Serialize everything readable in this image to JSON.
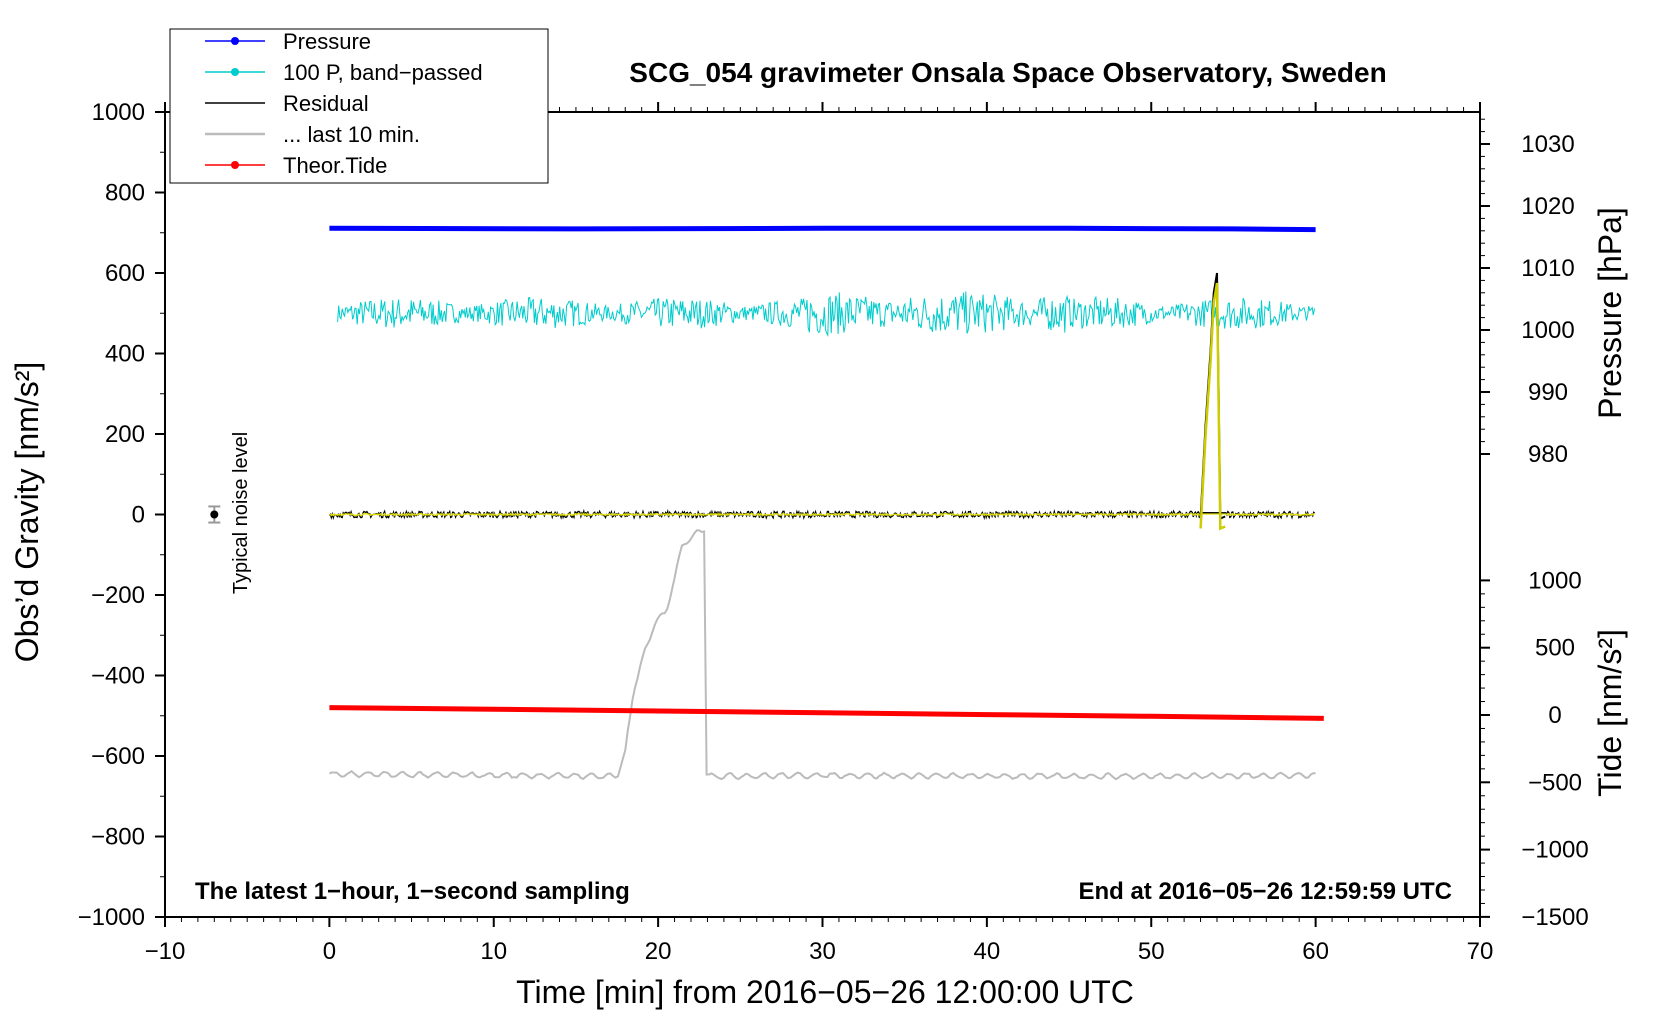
{
  "chart_data": {
    "type": "line",
    "title": "SCG_054 gravimeter Onsala Space Observatory, Sweden",
    "xlabel": "Time [min] from 2016−05−26 12:00:00 UTC",
    "ylabel_main": "Obs’d Gravity [nm/s²]",
    "ylabel_pressure": "Pressure [hPa]",
    "ylabel_tide": "Tide [nm/s²]",
    "xlim": [
      -10,
      70
    ],
    "ylim": [
      -1000,
      1000
    ],
    "pressure_lim": [
      975,
      1035
    ],
    "tide_lim": [
      -1500,
      1000
    ],
    "x_ticks": [
      -10,
      0,
      10,
      20,
      30,
      40,
      50,
      60,
      70
    ],
    "x_tick_labels": [
      "−10",
      "0",
      "10",
      "20",
      "30",
      "40",
      "50",
      "60",
      "70"
    ],
    "y_ticks": [
      1000,
      800,
      600,
      400,
      200,
      0,
      -200,
      -400,
      -600,
      -800,
      -1000
    ],
    "y_tick_labels": [
      "1000",
      "800",
      "600",
      "400",
      "200",
      "0",
      "−200",
      "−400",
      "−600",
      "−800",
      "−1000"
    ],
    "pressure_ticks": [
      1030,
      1020,
      1010,
      1000,
      990,
      980
    ],
    "pressure_tick_labels": [
      "1030",
      "1020",
      "1010",
      "1000",
      "990",
      "980"
    ],
    "tide_ticks": [
      1000,
      500,
      0,
      -500,
      -1000,
      -1500
    ],
    "tide_tick_labels": [
      "1000",
      "500",
      "0",
      "−500",
      "−1000",
      "−1500"
    ],
    "legend": {
      "position": "top-left",
      "entries": [
        {
          "label": "Pressure",
          "color": "#0000ff",
          "marker": true
        },
        {
          "label": "100 P, band−passed",
          "color": "#00cccc",
          "marker": true
        },
        {
          "label": "Residual",
          "color": "#000000",
          "marker": false
        },
        {
          "label": "... last 10 min.",
          "color": "#bbbbbb",
          "marker": false
        },
        {
          "label": "Theor.Tide",
          "color": "#ff0000",
          "marker": true
        }
      ]
    },
    "annotations": {
      "bottom_left": "The latest 1−hour, 1−second sampling",
      "bottom_right": "End at 2016−05−26 12:59:59 UTC",
      "noise_label": "Typical noise level"
    },
    "noise_level": {
      "x": -7,
      "y": 0,
      "err": 20
    },
    "series": [
      {
        "name": "Pressure",
        "color": "#0000ff",
        "x": [
          0,
          15,
          30,
          45,
          55,
          60
        ],
        "y": [
          1016.4,
          1016.3,
          1016.4,
          1016.4,
          1016.3,
          1016.2
        ]
      },
      {
        "name": "Theor.Tide",
        "color": "#ff0000",
        "x": [
          0,
          10,
          20,
          30,
          40,
          50,
          60.5
        ],
        "y": [
          55,
          43,
          30,
          17,
          3,
          -10,
          -25
        ]
      },
      {
        "name": "... last 10 min.",
        "color": "#bbbbbb",
        "x": [
          0,
          17.5,
          18,
          18.5,
          18.7,
          19.2,
          19.8,
          20.5,
          21,
          21.5,
          22,
          22.5,
          22.8,
          22.9,
          23.2,
          30,
          40,
          50,
          60
        ],
        "y": [
          -645,
          -650,
          -590,
          -440,
          -410,
          -340,
          -270,
          -240,
          -160,
          -70,
          -60,
          -40,
          -35,
          -640,
          -650,
          -648,
          -650,
          -650,
          -648
        ]
      }
    ],
    "residual_spike": {
      "x": [
        53,
        53.3,
        53.6,
        53.8,
        54,
        54.2,
        54.5
      ],
      "y": [
        -10,
        220,
        400,
        550,
        600,
        -10,
        -5
      ]
    }
  }
}
